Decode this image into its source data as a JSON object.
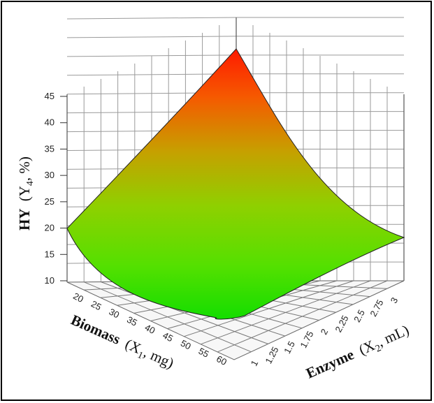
{
  "chart_data": {
    "type": "surface",
    "zlabel_main": "HY",
    "zlabel_var": "Y",
    "zlabel_sub": "4",
    "zlabel_unit": ", %)",
    "xlabel_main": "Biomass",
    "xlabel_var": "(X",
    "xlabel_sub": "1",
    "xlabel_unit": ", mg)",
    "ylabel_main": "Enzyme",
    "ylabel_var": "(X",
    "ylabel_sub": "2",
    "ylabel_unit": ", mL)",
    "z_ticks": [
      "10",
      "15",
      "20",
      "25",
      "30",
      "35",
      "40",
      "45"
    ],
    "x_ticks": [
      "20",
      "25",
      "30",
      "35",
      "40",
      "45",
      "50",
      "55",
      "60"
    ],
    "y_ticks": [
      "1",
      "1.25",
      "1.5",
      "1.75",
      "2",
      "2.25",
      "2.5",
      "2.75",
      "3"
    ],
    "zlim": [
      10,
      45
    ],
    "xlim": [
      20,
      60
    ],
    "ylim": [
      1,
      3
    ],
    "corners": {
      "biomass_20_enzyme_1": 19,
      "biomass_20_enzyme_3": 43,
      "biomass_60_enzyme_3": 18,
      "biomass_60_enzyme_1": 10.5
    },
    "colors": {
      "high": "#ff0000",
      "mid": "#7fcc00",
      "low": "#00e000"
    }
  }
}
